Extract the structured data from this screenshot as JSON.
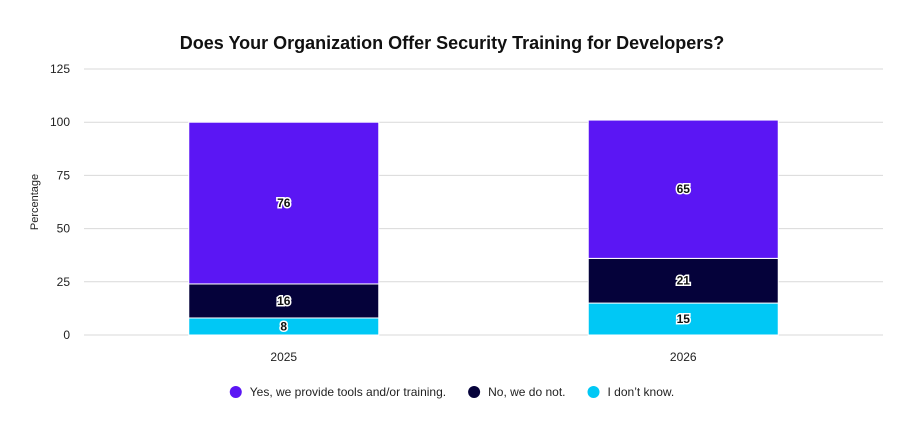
{
  "chart_data": {
    "type": "bar",
    "stacked": true,
    "title": "Does Your Organization Offer Security Training for Developers?",
    "xlabel": "",
    "ylabel": "Percentage",
    "ylim": [
      0,
      125
    ],
    "yticks": [
      0,
      25,
      50,
      75,
      100,
      125
    ],
    "grid": true,
    "legend_position": "bottom",
    "categories": [
      "2025",
      "2026"
    ],
    "series": [
      {
        "name": "I don’t know.",
        "values": [
          8,
          15
        ],
        "color": "#00c8f5"
      },
      {
        "name": "No, we do not.",
        "values": [
          16,
          21
        ],
        "color": "#05023a"
      },
      {
        "name": "Yes, we provide tools and/or training.",
        "values": [
          76,
          65
        ],
        "color": "#5b16f4"
      }
    ],
    "legend_order": [
      2,
      1,
      0
    ]
  }
}
